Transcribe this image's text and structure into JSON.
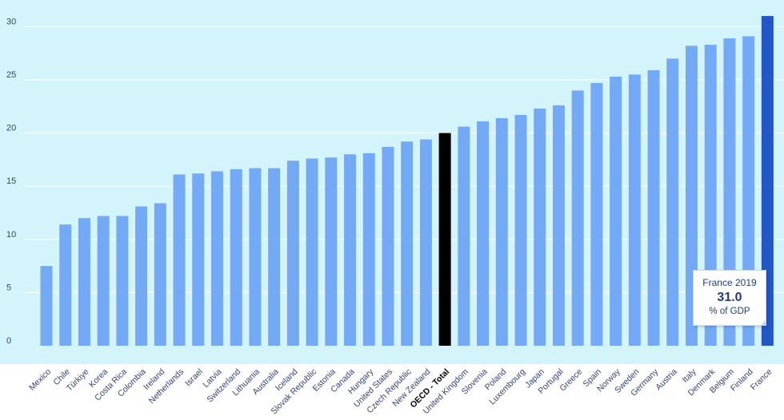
{
  "chart_data": {
    "type": "bar",
    "categories": [
      "Mexico",
      "Chile",
      "Türkiye",
      "Korea",
      "Costa Rica",
      "Colombia",
      "Ireland",
      "Netherlands",
      "Israel",
      "Latvia",
      "Switzerland",
      "Lithuania",
      "Australia",
      "Iceland",
      "Slovak Republic",
      "Estonia",
      "Canada",
      "Hungary",
      "United States",
      "Czech Republic",
      "New Zealand",
      "OECD - Total",
      "United Kingdom",
      "Slovenia",
      "Poland",
      "Luxembourg",
      "Japan",
      "Portugal",
      "Greece",
      "Spain",
      "Norway",
      "Sweden",
      "Germany",
      "Austria",
      "Italy",
      "Denmark",
      "Belgium",
      "Finland",
      "France"
    ],
    "values": [
      7.5,
      11.4,
      12.0,
      12.2,
      12.2,
      13.1,
      13.4,
      16.1,
      16.2,
      16.4,
      16.6,
      16.7,
      16.7,
      17.4,
      17.6,
      17.7,
      18.0,
      18.1,
      18.7,
      19.2,
      19.4,
      20.0,
      20.6,
      21.1,
      21.4,
      21.7,
      22.3,
      22.6,
      24.0,
      24.7,
      25.3,
      25.5,
      25.9,
      27.0,
      28.2,
      28.3,
      28.9,
      29.1,
      31.0
    ],
    "highlight_category": "OECD - Total",
    "selected_category": "France",
    "yticks": [
      0,
      5,
      10,
      15,
      20,
      25,
      30
    ],
    "ylim": [
      0,
      31
    ],
    "grid": true,
    "colors": {
      "plot_background": "#d4f4fb",
      "bar": "#74aaf5",
      "highlight_bar": "#000000",
      "selected_bar": "#2157c6",
      "grid": "#ffffff",
      "label": "#33447a"
    },
    "tooltip": {
      "title": "France 2019",
      "value": "31.0",
      "unit": "% of GDP"
    }
  }
}
